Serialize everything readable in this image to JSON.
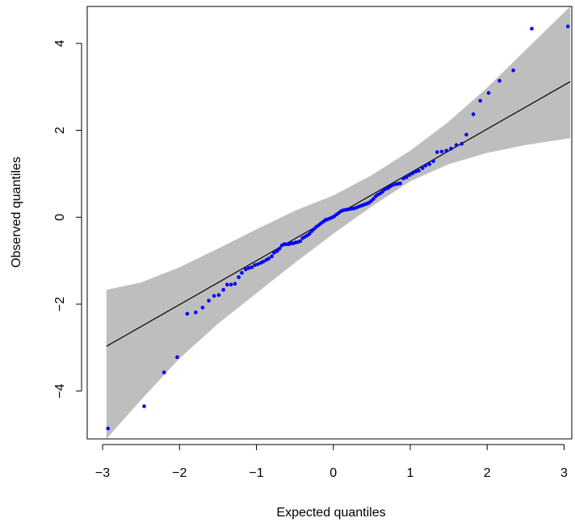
{
  "chart_data": {
    "type": "scatter",
    "title": "",
    "xlabel": "Expected quantiles",
    "ylabel": "Observed quantiles",
    "xlim": [
      -3.2,
      3.1
    ],
    "ylim": [
      -5.1,
      4.85
    ],
    "x_ticks": [
      -3,
      -2,
      -1,
      0,
      1,
      2,
      3
    ],
    "x_tick_labels": [
      "−3",
      "−2",
      "−1",
      "0",
      "1",
      "2",
      "3"
    ],
    "y_ticks": [
      -4,
      -2,
      0,
      2,
      4
    ],
    "y_tick_labels": [
      "−4",
      "−2",
      "0",
      "2",
      "4"
    ],
    "grid": false,
    "legend": "none",
    "colors": {
      "points": "#0000ff",
      "reference_line": "#000000",
      "confidence_band": "#bebebe",
      "frame": "#000000"
    },
    "reference_line": {
      "x": [
        -2.95,
        3.08
      ],
      "y": [
        -2.97,
        3.12
      ]
    },
    "confidence_band": {
      "x": [
        -2.95,
        -2.5,
        -2.0,
        -1.5,
        -1.0,
        -0.5,
        0.0,
        0.5,
        1.0,
        1.5,
        2.0,
        2.5,
        3.08
      ],
      "lower": [
        -5.1,
        -4.2,
        -3.25,
        -2.45,
        -1.75,
        -1.05,
        -0.38,
        0.25,
        0.83,
        1.22,
        1.48,
        1.66,
        1.82
      ],
      "upper": [
        -1.67,
        -1.5,
        -1.15,
        -0.72,
        -0.28,
        0.15,
        0.5,
        0.97,
        1.53,
        2.2,
        2.98,
        3.85,
        4.85
      ]
    },
    "series": [
      {
        "points": [
          [
            -2.93,
            -4.86
          ],
          [
            -2.46,
            -4.35
          ],
          [
            -2.2,
            -3.57
          ],
          [
            -2.03,
            -3.22
          ],
          [
            -1.9,
            -2.22
          ],
          [
            -1.79,
            -2.19
          ],
          [
            -1.7,
            -2.08
          ],
          [
            -1.62,
            -1.92
          ],
          [
            -1.55,
            -1.81
          ],
          [
            -1.49,
            -1.79
          ],
          [
            -1.43,
            -1.67
          ],
          [
            -1.38,
            -1.55
          ],
          [
            -1.33,
            -1.55
          ],
          [
            -1.28,
            -1.53
          ],
          [
            -1.23,
            -1.38
          ],
          [
            -1.19,
            -1.28
          ],
          [
            -1.14,
            -1.2
          ],
          [
            -1.1,
            -1.17
          ],
          [
            -1.06,
            -1.15
          ],
          [
            -1.02,
            -1.1
          ],
          [
            -0.98,
            -1.08
          ],
          [
            -0.94,
            -1.05
          ],
          [
            -0.91,
            -1.02
          ],
          [
            -0.87,
            -0.98
          ],
          [
            -0.84,
            -0.95
          ],
          [
            -0.8,
            -0.9
          ],
          [
            -0.77,
            -0.82
          ],
          [
            -0.73,
            -0.78
          ],
          [
            -0.7,
            -0.72
          ],
          [
            -0.67,
            -0.65
          ],
          [
            -0.64,
            -0.62
          ],
          [
            -0.61,
            -0.62
          ],
          [
            -0.58,
            -0.62
          ],
          [
            -0.55,
            -0.6
          ],
          [
            -0.52,
            -0.6
          ],
          [
            -0.49,
            -0.58
          ],
          [
            -0.46,
            -0.57
          ],
          [
            -0.43,
            -0.55
          ],
          [
            -0.4,
            -0.48
          ],
          [
            -0.37,
            -0.45
          ],
          [
            -0.34,
            -0.42
          ],
          [
            -0.31,
            -0.38
          ],
          [
            -0.28,
            -0.32
          ],
          [
            -0.25,
            -0.27
          ],
          [
            -0.22,
            -0.22
          ],
          [
            -0.19,
            -0.18
          ],
          [
            -0.16,
            -0.14
          ],
          [
            -0.13,
            -0.1
          ],
          [
            -0.1,
            -0.06
          ],
          [
            -0.08,
            -0.05
          ],
          [
            -0.05,
            -0.03
          ],
          [
            -0.02,
            -0.01
          ],
          [
            0.01,
            0.02
          ],
          [
            0.04,
            0.06
          ],
          [
            0.07,
            0.1
          ],
          [
            0.1,
            0.14
          ],
          [
            0.13,
            0.16
          ],
          [
            0.16,
            0.17
          ],
          [
            0.19,
            0.18
          ],
          [
            0.22,
            0.19
          ],
          [
            0.25,
            0.2
          ],
          [
            0.28,
            0.21
          ],
          [
            0.31,
            0.23
          ],
          [
            0.34,
            0.25
          ],
          [
            0.37,
            0.27
          ],
          [
            0.4,
            0.29
          ],
          [
            0.43,
            0.31
          ],
          [
            0.46,
            0.33
          ],
          [
            0.49,
            0.37
          ],
          [
            0.52,
            0.42
          ],
          [
            0.55,
            0.48
          ],
          [
            0.58,
            0.52
          ],
          [
            0.61,
            0.55
          ],
          [
            0.64,
            0.59
          ],
          [
            0.67,
            0.64
          ],
          [
            0.71,
            0.67
          ],
          [
            0.74,
            0.71
          ],
          [
            0.77,
            0.74
          ],
          [
            0.81,
            0.76
          ],
          [
            0.84,
            0.77
          ],
          [
            0.87,
            0.78
          ],
          [
            0.91,
            0.89
          ],
          [
            0.95,
            0.92
          ],
          [
            0.99,
            0.97
          ],
          [
            1.03,
            1.01
          ],
          [
            1.07,
            1.05
          ],
          [
            1.11,
            1.07
          ],
          [
            1.16,
            1.13
          ],
          [
            1.2,
            1.19
          ],
          [
            1.25,
            1.22
          ],
          [
            1.3,
            1.29
          ],
          [
            1.35,
            1.5
          ],
          [
            1.41,
            1.51
          ],
          [
            1.47,
            1.53
          ],
          [
            1.53,
            1.58
          ],
          [
            1.6,
            1.66
          ],
          [
            1.67,
            1.69
          ],
          [
            1.73,
            1.9
          ],
          [
            1.82,
            2.37
          ],
          [
            1.91,
            2.68
          ],
          [
            2.02,
            2.86
          ],
          [
            2.16,
            3.14
          ],
          [
            2.34,
            3.38
          ],
          [
            2.58,
            4.34
          ],
          [
            3.05,
            4.39
          ]
        ]
      }
    ]
  }
}
